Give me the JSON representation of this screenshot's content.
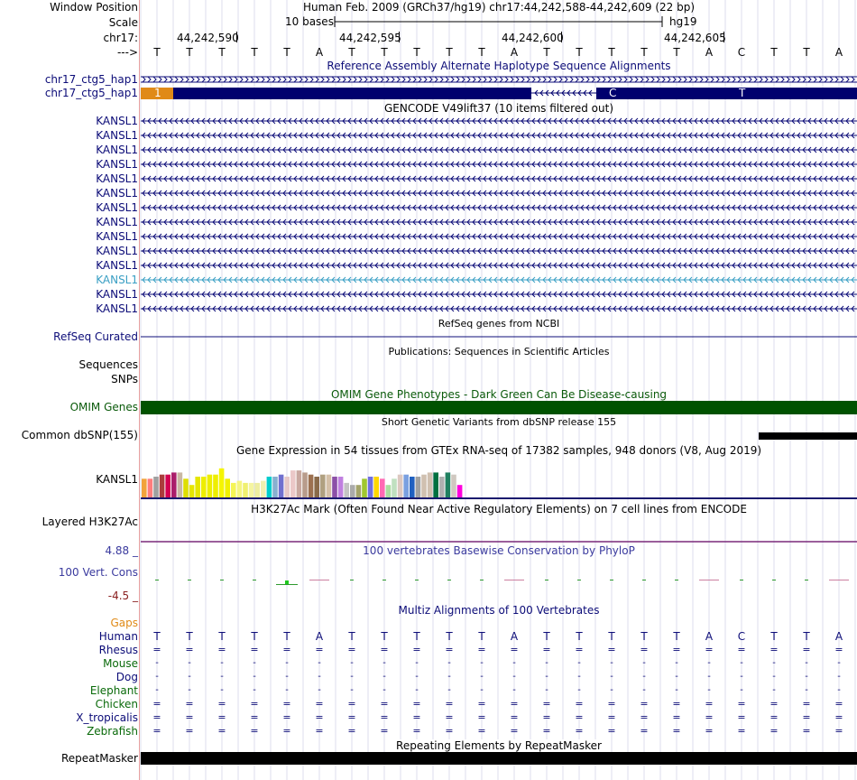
{
  "header": {
    "window_position_label": "Window Position",
    "title": "Human Feb. 2009 (GRCh37/hg19)   chr17:44,242,588-44,242,609 (22 bp)",
    "scale_label": "Scale",
    "scale_text": "10 bases",
    "assembly": "hg19",
    "chrom_label": "chr17:",
    "ruler_ticks": [
      "44,242,590",
      "44,242,595",
      "44,242,600",
      "44,242,605"
    ],
    "strand_label": "--->",
    "bases": [
      "T",
      "T",
      "T",
      "T",
      "T",
      "A",
      "T",
      "T",
      "T",
      "T",
      "T",
      "A",
      "T",
      "T",
      "T",
      "T",
      "T",
      "A",
      "C",
      "T",
      "T",
      "A"
    ]
  },
  "alt_haplotype": {
    "track_title": "Reference Assembly Alternate Haplotype Sequence Alignments",
    "row1_label": "chr17_ctg5_hap1",
    "row2_label": "chr17_ctg5_hap1",
    "block_labels": [
      "1",
      "C",
      "T"
    ],
    "colors": {
      "orange": "#e08a17",
      "navy": "#00006e"
    }
  },
  "gencode": {
    "track_title": "GENCODE V49lift37 (10 items filtered out)",
    "genes": [
      "KANSL1",
      "KANSL1",
      "KANSL1",
      "KANSL1",
      "KANSL1",
      "KANSL1",
      "KANSL1",
      "KANSL1",
      "KANSL1",
      "KANSL1",
      "KANSL1",
      "KANSL1",
      "KANSL1",
      "KANSL1"
    ],
    "highlight_index": 11
  },
  "refseq": {
    "track_title": "RefSeq genes from NCBI",
    "label": "RefSeq Curated"
  },
  "publications": {
    "track_title": "Publications: Sequences in Scientific Articles",
    "label1": "Sequences",
    "label2": "SNPs"
  },
  "omim": {
    "track_title": "OMIM Gene Phenotypes - Dark Green Can Be Disease-causing",
    "label": "OMIM Genes",
    "color": "#005200"
  },
  "dbsnp": {
    "track_title": "Short Genetic Variants from dbSNP release 155",
    "label": "Common dbSNP(155)"
  },
  "gtex": {
    "track_title": "Gene Expression in 54 tissues from GTEx RNA-seq of 17382 samples, 948 donors (V8, Aug 2019)",
    "label": "KANSL1",
    "bar_levels": [
      0.45,
      0.45,
      0.5,
      0.55,
      0.55,
      0.6,
      0.6,
      0.45,
      0.3,
      0.5,
      0.5,
      0.55,
      0.55,
      0.7,
      0.45,
      0.35,
      0.4,
      0.35,
      0.35,
      0.35,
      0.4,
      0.5,
      0.5,
      0.55,
      0.5,
      0.65,
      0.65,
      0.6,
      0.55,
      0.5,
      0.55,
      0.55,
      0.5,
      0.5,
      0.35,
      0.3,
      0.3,
      0.45,
      0.5,
      0.5,
      0.45,
      0.3,
      0.45,
      0.55,
      0.55,
      0.5,
      0.5,
      0.55,
      0.6,
      0.6,
      0.5,
      0.6,
      0.55,
      0.3
    ],
    "bar_colors": [
      "#f2a33b",
      "#ff7d7d",
      "#a0a0a0",
      "#ab3c3c",
      "#d40052",
      "#aa1e6b",
      "#c9b8a3",
      "#dede00",
      "#e6e600",
      "#e6e600",
      "#eeee00",
      "#eeee00",
      "#eeee00",
      "#f5f500",
      "#f0f000",
      "#f5f555",
      "#f5f580",
      "#f0f070",
      "#f5f5a0",
      "#eeeea0",
      "#f0f0b0",
      "#00cdcd",
      "#88b0d0",
      "#7070cf",
      "#e6c8c8",
      "#ebc8c8",
      "#c9a8a0",
      "#b89c8c",
      "#9c7050",
      "#8a6a4a",
      "#b0a080",
      "#d5c0a8",
      "#8c50a8",
      "#c080e0",
      "#c4c4c4",
      "#aaaaaa",
      "#a3a36a",
      "#a0c830",
      "#7070e0",
      "#ffd700",
      "#ff69b4",
      "#aadda0",
      "#c0e0c0",
      "#dcc8c0",
      "#7aa0e0",
      "#2060c0",
      "#a0a0a0",
      "#d0c0b0",
      "#d0c0b0",
      "#007040",
      "#b0b0b0",
      "#208060",
      "#d0c8c0",
      "#ff00dd"
    ],
    "baseline_color": "#1a1a6e"
  },
  "h3k27ac": {
    "track_title": "H3K27Ac Mark (Often Found Near Active Regulatory Elements) on 7 cell lines from ENCODE",
    "label": "Layered H3K27Ac",
    "line_color": "#7a2a7a"
  },
  "phylop": {
    "track_title": "100 vertebrates Basewise Conservation by PhyloP",
    "label": "100 Vert. Cons",
    "max_label": "4.88 _",
    "min_label": "-4.5 _",
    "color": "#3a3a9e",
    "min_color": "#8a2020",
    "scores": [
      0.02,
      0.02,
      0.02,
      0.02,
      0.35,
      -0.02,
      0.02,
      0.02,
      0.02,
      0.02,
      0.02,
      -0.02,
      0.02,
      0.02,
      0.02,
      0.02,
      0.02,
      -0.02,
      0.02,
      0.02,
      0.02,
      -0.02
    ]
  },
  "multiz": {
    "track_title": "Multiz Alignments of 100 Vertebrates",
    "gaps_label": "Gaps",
    "species": [
      {
        "name": "Human",
        "row": [
          "T",
          "T",
          "T",
          "T",
          "T",
          "A",
          "T",
          "T",
          "T",
          "T",
          "T",
          "A",
          "T",
          "T",
          "T",
          "T",
          "T",
          "A",
          "C",
          "T",
          "T",
          "A"
        ],
        "color": "#0c0c78"
      },
      {
        "name": "Rhesus",
        "row": [
          "=",
          "=",
          "=",
          "=",
          "=",
          "=",
          "=",
          "=",
          "=",
          "=",
          "=",
          "=",
          "=",
          "=",
          "=",
          "=",
          "=",
          "=",
          "=",
          "=",
          "=",
          "="
        ],
        "color": "#0c0c78"
      },
      {
        "name": "Mouse",
        "row": [
          "-",
          "-",
          "-",
          "-",
          "-",
          "-",
          "-",
          "-",
          "-",
          "-",
          "-",
          "-",
          "-",
          "-",
          "-",
          "-",
          "-",
          "-",
          "-",
          "-",
          "-",
          "-"
        ],
        "color": "#0a6a0a"
      },
      {
        "name": "Dog",
        "row": [
          "-",
          "-",
          "-",
          "-",
          "-",
          "-",
          "-",
          "-",
          "-",
          "-",
          "-",
          "-",
          "-",
          "-",
          "-",
          "-",
          "-",
          "-",
          "-",
          "-",
          "-",
          "-"
        ],
        "color": "#0c0c78"
      },
      {
        "name": "Elephant",
        "row": [
          "-",
          "-",
          "-",
          "-",
          "-",
          "-",
          "-",
          "-",
          "-",
          "-",
          "-",
          "-",
          "-",
          "-",
          "-",
          "-",
          "-",
          "-",
          "-",
          "-",
          "-",
          "-"
        ],
        "color": "#0a6a0a"
      },
      {
        "name": "Chicken",
        "row": [
          "=",
          "=",
          "=",
          "=",
          "=",
          "=",
          "=",
          "=",
          "=",
          "=",
          "=",
          "=",
          "=",
          "=",
          "=",
          "=",
          "=",
          "=",
          "=",
          "=",
          "=",
          "="
        ],
        "color": "#0a6a0a"
      },
      {
        "name": "X_tropicalis",
        "row": [
          "=",
          "=",
          "=",
          "=",
          "=",
          "=",
          "=",
          "=",
          "=",
          "=",
          "=",
          "=",
          "=",
          "=",
          "=",
          "=",
          "=",
          "=",
          "=",
          "=",
          "=",
          "="
        ],
        "color": "#0c0c78"
      },
      {
        "name": "Zebrafish",
        "row": [
          "=",
          "=",
          "=",
          "=",
          "=",
          "=",
          "=",
          "=",
          "=",
          "=",
          "=",
          "=",
          "=",
          "=",
          "=",
          "=",
          "=",
          "=",
          "=",
          "=",
          "=",
          "="
        ],
        "color": "#0a6a0a"
      }
    ]
  },
  "repeatmasker": {
    "track_title": "Repeating Elements by RepeatMasker",
    "label": "RepeatMasker"
  }
}
